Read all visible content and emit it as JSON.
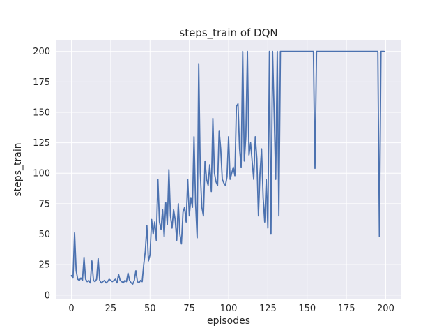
{
  "figure": {
    "background": "#ffffff"
  },
  "colors": {
    "line": "#4c72b0",
    "axes_background": "#eaeaf2",
    "grid": "#ffffff",
    "text": "#262626"
  },
  "chart_data": {
    "type": "line",
    "title": "steps_train of DQN",
    "xlabel": "episodes",
    "ylabel": "steps_train",
    "xlim": [
      -10,
      210
    ],
    "ylim": [
      -3,
      209
    ],
    "xticks": [
      0,
      25,
      50,
      75,
      100,
      125,
      150,
      175,
      200
    ],
    "yticks": [
      0,
      25,
      50,
      75,
      100,
      125,
      150,
      175,
      200
    ],
    "grid": true,
    "legend_position": "none",
    "x_is_episode_index": true,
    "series": [
      {
        "name": "steps_train",
        "color": "#4c72b0",
        "values": [
          16,
          14,
          51,
          20,
          13,
          12,
          14,
          12,
          31,
          13,
          11,
          12,
          10,
          28,
          12,
          11,
          13,
          30,
          12,
          10,
          11,
          12,
          10,
          11,
          13,
          12,
          11,
          12,
          13,
          10,
          17,
          12,
          11,
          10,
          12,
          11,
          18,
          12,
          10,
          9,
          12,
          20,
          11,
          10,
          12,
          11,
          25,
          36,
          57,
          28,
          33,
          62,
          50,
          60,
          45,
          95,
          60,
          54,
          70,
          48,
          76,
          58,
          103,
          65,
          55,
          70,
          62,
          45,
          75,
          50,
          42,
          68,
          72,
          60,
          95,
          65,
          80,
          72,
          130,
          75,
          47,
          190,
          100,
          72,
          65,
          110,
          95,
          90,
          107,
          85,
          145,
          100,
          93,
          90,
          135,
          120,
          95,
          92,
          90,
          97,
          130,
          95,
          100,
          105,
          98,
          155,
          157,
          120,
          105,
          200,
          110,
          130,
          200,
          115,
          125,
          110,
          95,
          130,
          112,
          65,
          100,
          120,
          80,
          60,
          95,
          55,
          200,
          50,
          200,
          150,
          95,
          200,
          65,
          200,
          200,
          200,
          200,
          200,
          200,
          200,
          200,
          200,
          200,
          200,
          200,
          200,
          200,
          200,
          200,
          200,
          200,
          200,
          200,
          200,
          200,
          104,
          200,
          200,
          200,
          200,
          200,
          200,
          200,
          200,
          200,
          200,
          200,
          200,
          200,
          200,
          200,
          200,
          200,
          200,
          200,
          200,
          200,
          200,
          200,
          200,
          200,
          200,
          200,
          200,
          200,
          200,
          200,
          200,
          200,
          200,
          200,
          200,
          200,
          200,
          200,
          200,
          48,
          200,
          200,
          200
        ]
      }
    ]
  }
}
